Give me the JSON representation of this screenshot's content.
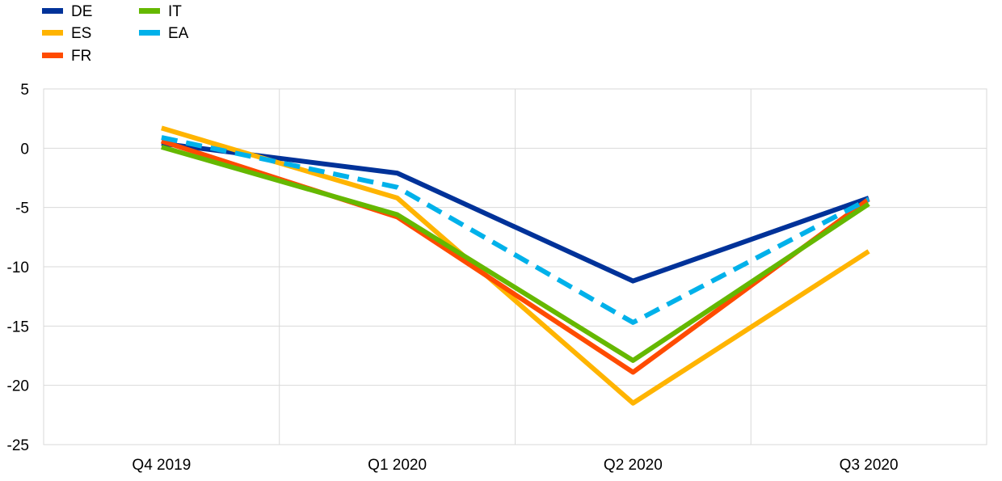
{
  "chart_data": {
    "type": "line",
    "title": "",
    "xlabel": "",
    "ylabel": "",
    "categories": [
      "Q4 2019",
      "Q1 2020",
      "Q2 2020",
      "Q3 2020"
    ],
    "ylim": [
      -25,
      5
    ],
    "yticks": [
      5,
      0,
      -5,
      -10,
      -15,
      -20,
      -25
    ],
    "grid": true,
    "legend_position": "top-left",
    "series": [
      {
        "name": "DE",
        "color": "#003299",
        "dashed": false,
        "values": [
          0.4,
          -2.1,
          -11.2,
          -4.2
        ]
      },
      {
        "name": "ES",
        "color": "#ffb400",
        "dashed": false,
        "values": [
          1.7,
          -4.2,
          -21.5,
          -8.7
        ]
      },
      {
        "name": "FR",
        "color": "#ff4b00",
        "dashed": false,
        "values": [
          0.6,
          -5.8,
          -18.9,
          -4.3
        ]
      },
      {
        "name": "IT",
        "color": "#65b800",
        "dashed": false,
        "values": [
          0.1,
          -5.6,
          -17.9,
          -4.7
        ]
      },
      {
        "name": "EA",
        "color": "#00b1ea",
        "dashed": true,
        "values": [
          0.9,
          -3.3,
          -14.7,
          -4.3
        ]
      }
    ]
  }
}
